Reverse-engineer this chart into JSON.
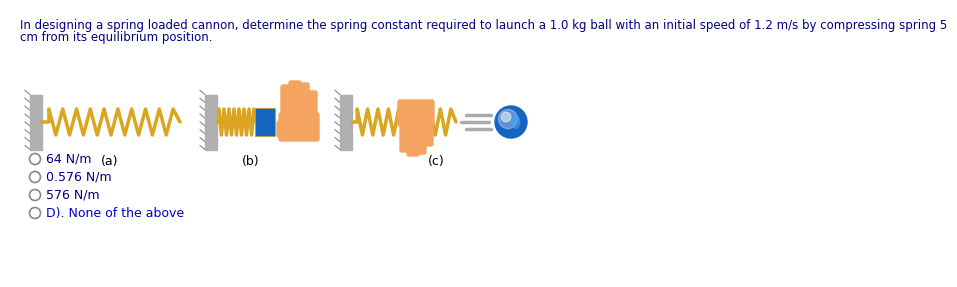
{
  "title_line1": "In designing a spring loaded cannon, determine the spring constant required to launch a 1.0 kg ball with an initial speed of 1.2 m/s by compressing spring 5",
  "title_line2": "cm from its equilibrium position.",
  "title_color": "#000080",
  "title_fontsize": 8.5,
  "options": [
    "64 N/m",
    "0.576 N/m",
    "576 N/m",
    "D). None of the above"
  ],
  "option_colors": [
    "#000080",
    "#000080",
    "#000080",
    "#0000CD"
  ],
  "option_fontsize": 9,
  "label_a": "(a)",
  "label_b": "(b)",
  "label_c": "(c)",
  "bg_color": "#ffffff",
  "spring_color": "#DAA520",
  "wall_color": "#b0b0b0",
  "ball_color_dark": "#1565C0",
  "ball_color_light": "#42A5F5",
  "hand_color": "#F4A460",
  "arrow_color": "#aaaaaa"
}
